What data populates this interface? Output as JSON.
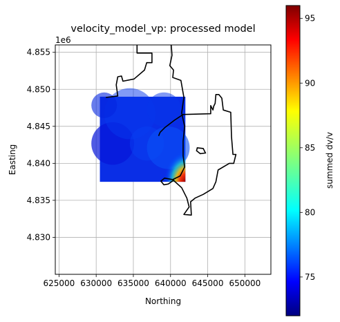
{
  "chart_data": {
    "type": "heatmap",
    "title": "velocity_model_vp: processed model",
    "xlabel": "Northing",
    "ylabel": "Easting",
    "y_offset_text": "1e6",
    "xlim": [
      624500,
      653500
    ],
    "ylim": [
      4825000,
      4856000
    ],
    "x_ticks": [
      625000,
      630000,
      635000,
      640000,
      645000,
      650000
    ],
    "x_tick_labels": [
      "625000",
      "630000",
      "635000",
      "640000",
      "645000",
      "650000"
    ],
    "y_ticks": [
      4830000,
      4835000,
      4840000,
      4845000,
      4850000,
      4855000
    ],
    "y_tick_labels": [
      "4.830",
      "4.835",
      "4.840",
      "4.845",
      "4.850",
      "4.855"
    ],
    "grid": true,
    "colorbar": {
      "label": "summed dv/v",
      "colormap": "jet",
      "vmin": 72,
      "vmax": 96,
      "ticks": [
        75,
        80,
        85,
        90,
        95
      ],
      "tick_labels": [
        "75",
        "80",
        "85",
        "90",
        "95"
      ]
    },
    "model_extent": {
      "x": [
        630500,
        642000
      ],
      "y": [
        4837500,
        4849000
      ]
    },
    "model_description_values": {
      "dominant": 74,
      "max_corner": 96
    },
    "boundary_outline": [
      [
        640100,
        4856000
      ],
      [
        640200,
        4854600
      ],
      [
        639900,
        4853200
      ],
      [
        640400,
        4852600
      ],
      [
        640300,
        4851600
      ],
      [
        641400,
        4851200
      ],
      [
        641800,
        4848900
      ],
      [
        641500,
        4846800
      ],
      [
        641900,
        4845000
      ],
      [
        641700,
        4843000
      ],
      [
        641700,
        4841000
      ],
      [
        641900,
        4839500
      ],
      [
        641300,
        4838300
      ],
      [
        640300,
        4837800
      ],
      [
        639200,
        4838000
      ],
      [
        638700,
        4837600
      ],
      [
        639100,
        4837100
      ],
      [
        639700,
        4837200
      ],
      [
        640400,
        4837700
      ],
      [
        641500,
        4836700
      ],
      [
        642200,
        4835300
      ],
      [
        642500,
        4834100
      ],
      [
        641800,
        4833100
      ],
      [
        642800,
        4833000
      ],
      [
        642700,
        4834800
      ],
      [
        643300,
        4835300
      ],
      [
        644400,
        4835800
      ],
      [
        645700,
        4836600
      ],
      [
        646100,
        4837500
      ],
      [
        646400,
        4839100
      ],
      [
        647900,
        4840000
      ],
      [
        648500,
        4840000
      ],
      [
        648800,
        4841200
      ],
      [
        648400,
        4841200
      ],
      [
        648200,
        4843600
      ],
      [
        648100,
        4846900
      ],
      [
        647100,
        4847200
      ],
      [
        646900,
        4848800
      ],
      [
        646500,
        4849300
      ],
      [
        646100,
        4849300
      ],
      [
        646000,
        4848100
      ],
      [
        645800,
        4847700
      ],
      [
        645700,
        4847200
      ],
      [
        645400,
        4847800
      ],
      [
        645400,
        4846700
      ],
      [
        641700,
        4846600
      ],
      [
        640500,
        4845800
      ],
      [
        639200,
        4844800
      ],
      [
        638600,
        4844200
      ],
      [
        638400,
        4843700
      ]
    ],
    "boundary_outline_b": [
      [
        635500,
        4856000
      ],
      [
        635500,
        4854900
      ],
      [
        637500,
        4854900
      ],
      [
        637500,
        4853600
      ],
      [
        636800,
        4853600
      ],
      [
        636500,
        4852600
      ],
      [
        635100,
        4851400
      ],
      [
        633600,
        4851100
      ],
      [
        633400,
        4851800
      ],
      [
        632900,
        4851700
      ],
      [
        632700,
        4850600
      ],
      [
        632900,
        4849100
      ],
      [
        631300,
        4848900
      ]
    ],
    "boundary_island": [
      [
        643600,
        4842100
      ],
      [
        644400,
        4842000
      ],
      [
        644700,
        4841400
      ],
      [
        644000,
        4841300
      ],
      [
        643500,
        4841700
      ],
      [
        643600,
        4842100
      ]
    ]
  }
}
